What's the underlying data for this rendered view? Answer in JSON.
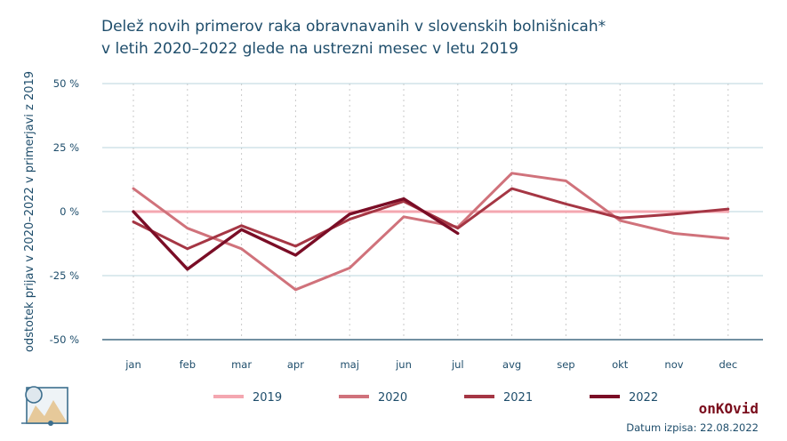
{
  "title": {
    "line1": "Delež novih primerov raka obravnavanih v slovenskih bolnišnicah*",
    "line2": "v letih 2020–2022 glede na ustrezni mesec v letu 2019"
  },
  "footer": {
    "brand": "onKOvid",
    "date_label": "Datum izpisa:",
    "date_value": "22.08.2022"
  },
  "colors": {
    "title": "#1e4d6b",
    "axis": "#1e4d6b",
    "grid": "#b9d4dd"
  },
  "chart_data": {
    "type": "line",
    "ylabel": "odstotek prijav v 2020–2022 v primerjavi z 2019",
    "xlabel": "",
    "categories": [
      "jan",
      "feb",
      "mar",
      "apr",
      "maj",
      "jun",
      "jul",
      "avg",
      "sep",
      "okt",
      "nov",
      "dec"
    ],
    "ylim": [
      -50,
      50
    ],
    "yticks": [
      50,
      25,
      0,
      -25,
      -50
    ],
    "ytick_labels": [
      "50 %",
      "25 %",
      "0 %",
      "-25 %",
      "-50 %"
    ],
    "grid": "horizontal",
    "legend_position": "bottom",
    "series": [
      {
        "name": "2019",
        "color": "#f4a7b0",
        "width": 3,
        "values": [
          0,
          0,
          0,
          0,
          0,
          0,
          0,
          0,
          0,
          0,
          0,
          0
        ]
      },
      {
        "name": "2020",
        "color": "#d0727b",
        "width": 3,
        "values": [
          9,
          -6.5,
          -14.5,
          -30.5,
          -22,
          -2,
          -6,
          15,
          12,
          -3.5,
          -8.5,
          -10.5
        ]
      },
      {
        "name": "2021",
        "color": "#a53644",
        "width": 3,
        "values": [
          -4,
          -14.5,
          -5.5,
          -13.5,
          -3,
          4,
          -6.5,
          9,
          3,
          -2.5,
          -1,
          1
        ]
      },
      {
        "name": "2022",
        "color": "#7a0d26",
        "width": 3.4,
        "values": [
          0,
          -22.5,
          -7,
          -17,
          -1,
          5,
          -8.5,
          null,
          null,
          null,
          null,
          null
        ]
      }
    ]
  }
}
